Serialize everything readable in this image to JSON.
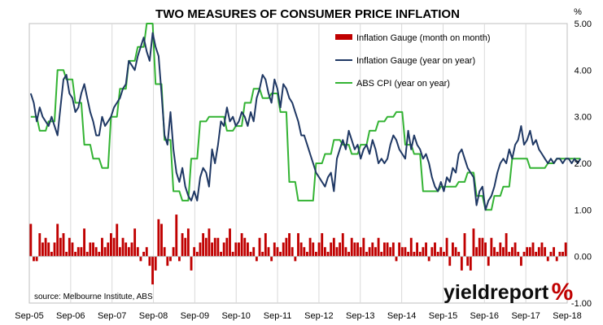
{
  "chart_data": {
    "type": "bar+line",
    "title": "TWO MEASURES OF CONSUMER PRICE INFLATION",
    "unit_label": "%",
    "ylim": [
      -1.0,
      5.0
    ],
    "y_ticks": [
      "5.00",
      "4.00",
      "3.00",
      "2.00",
      "1.00",
      "0.00",
      "-1.00"
    ],
    "y_tick_values": [
      5,
      4,
      3,
      2,
      1,
      0,
      -1
    ],
    "x_tick_labels": [
      "Sep-05",
      "Sep-06",
      "Sep-07",
      "Sep-08",
      "Sep-09",
      "Sep-10",
      "Sep-11",
      "Sep-12",
      "Sep-13",
      "Sep-14",
      "Sep-15",
      "Sep-16",
      "Sep-17",
      "Sep-18"
    ],
    "grid": "vertical",
    "legend_position": "top-right",
    "series": [
      {
        "name": "Inflation Gauge (month on month)",
        "kind": "bar",
        "color": "#c00000",
        "values": [
          0.7,
          -0.1,
          -0.1,
          0.5,
          0.3,
          0.4,
          0.3,
          0.1,
          0.3,
          0.7,
          0.4,
          0.5,
          0.1,
          0.4,
          0.3,
          0.1,
          0.2,
          0.2,
          0.6,
          0.1,
          0.3,
          0.3,
          0.2,
          0.1,
          0.4,
          0.2,
          0.3,
          0.5,
          0.4,
          0.7,
          0.2,
          0.4,
          0.3,
          0.2,
          0.3,
          0.6,
          0.2,
          -0.1,
          0.1,
          0.2,
          -0.2,
          -0.6,
          -0.3,
          0.8,
          0.7,
          0.2,
          -0.2,
          -0.1,
          0.2,
          0.9,
          -0.1,
          0.5,
          0.4,
          0.6,
          -0.3,
          0.2,
          0.1,
          0.3,
          0.5,
          0.4,
          0.6,
          0.3,
          0.4,
          0.4,
          0.1,
          0.3,
          0.4,
          0.6,
          0.1,
          0.3,
          0.3,
          0.5,
          0.4,
          0.3,
          0.1,
          0.2,
          -0.1,
          0.4,
          0.1,
          0.5,
          0.2,
          -0.1,
          0.3,
          0.2,
          0.1,
          0.3,
          0.4,
          0.5,
          0.2,
          -0.1,
          0.5,
          0.3,
          0.2,
          0.1,
          0.4,
          0.3,
          0.1,
          0.3,
          0.5,
          0.2,
          0.1,
          0.3,
          0.4,
          0.2,
          0.3,
          0.5,
          0.2,
          0.1,
          0.4,
          0.3,
          0.3,
          0.2,
          0.4,
          0.1,
          0.2,
          0.3,
          0.2,
          0.4,
          0.1,
          0.3,
          0.3,
          0.2,
          0.3,
          -0.1,
          0.3,
          0.2,
          0.2,
          0.1,
          0.4,
          0.1,
          0.3,
          0.1,
          0.2,
          0.3,
          -0.1,
          0.2,
          0.3,
          0.1,
          0.2,
          0.1,
          0.4,
          -0.2,
          0.3,
          0.2,
          0.1,
          -0.3,
          0.5,
          -0.2,
          -0.3,
          0.6,
          0.2,
          0.4,
          0.4,
          0.3,
          -0.2,
          0.4,
          0.2,
          0.1,
          0.3,
          0.2,
          0.5,
          0.1,
          0.2,
          0.3,
          0.1,
          -0.2,
          0.1,
          0.2,
          0.2,
          0.3,
          0.1,
          0.2,
          0.3,
          0.2,
          -0.1,
          0.1,
          0.2,
          -0.1,
          0.1,
          0.1,
          0.3
        ]
      },
      {
        "name": "Inflation Gauge (year on year)",
        "kind": "line",
        "color": "#1f3864",
        "values": [
          3.5,
          3.3,
          2.9,
          3.2,
          3.0,
          2.9,
          2.8,
          3.0,
          2.8,
          2.6,
          3.2,
          3.8,
          3.9,
          3.5,
          3.4,
          3.1,
          3.2,
          3.5,
          3.7,
          3.4,
          3.1,
          2.9,
          2.6,
          2.6,
          3.0,
          2.8,
          2.9,
          3.0,
          3.2,
          3.3,
          3.4,
          3.6,
          3.7,
          4.2,
          4.1,
          4.0,
          4.3,
          4.5,
          4.7,
          4.4,
          4.2,
          4.8,
          4.5,
          4.3,
          3.5,
          2.6,
          2.4,
          3.1,
          2.3,
          1.8,
          1.6,
          1.9,
          1.5,
          1.3,
          1.2,
          1.4,
          1.2,
          1.7,
          1.9,
          1.8,
          1.5,
          2.3,
          2.0,
          2.4,
          2.9,
          2.8,
          3.2,
          2.9,
          3.0,
          2.8,
          2.9,
          3.1,
          3.0,
          2.8,
          3.1,
          2.9,
          3.4,
          3.6,
          3.9,
          3.8,
          3.5,
          3.3,
          3.8,
          3.6,
          3.2,
          3.7,
          3.6,
          3.4,
          3.3,
          3.1,
          2.9,
          2.6,
          2.6,
          2.4,
          2.2,
          2.0,
          1.8,
          1.7,
          1.6,
          1.5,
          1.7,
          1.8,
          1.4,
          2.1,
          2.3,
          2.5,
          2.3,
          2.7,
          2.5,
          2.3,
          2.4,
          2.1,
          2.3,
          2.4,
          2.2,
          2.5,
          2.3,
          2.0,
          2.1,
          2.0,
          2.1,
          2.4,
          2.6,
          2.5,
          2.3,
          2.2,
          2.1,
          2.7,
          2.3,
          2.6,
          2.4,
          2.3,
          2.1,
          2.2,
          2.0,
          1.7,
          1.5,
          1.4,
          1.6,
          1.4,
          1.7,
          1.6,
          1.9,
          1.8,
          2.2,
          2.3,
          2.1,
          1.9,
          1.8,
          1.7,
          1.1,
          1.4,
          1.5,
          1.0,
          1.2,
          1.3,
          1.5,
          1.8,
          2.0,
          2.1,
          2.0,
          2.3,
          2.1,
          2.4,
          2.5,
          2.8,
          2.4,
          2.5,
          2.7,
          2.4,
          2.5,
          2.3,
          2.2,
          2.1,
          2.0,
          2.1,
          2.0,
          2.1,
          2.1,
          2.0,
          2.1,
          2.1,
          2.0,
          2.1,
          2.0,
          2.1
        ]
      },
      {
        "name": "ABS CPI (year on year)",
        "kind": "line",
        "color": "#33b333",
        "values": [
          3.0,
          3.0,
          3.0,
          2.7,
          2.7,
          2.7,
          2.9,
          2.9,
          2.9,
          4.0,
          4.0,
          4.0,
          3.8,
          3.8,
          3.8,
          3.3,
          3.3,
          3.3,
          2.4,
          2.4,
          2.4,
          2.1,
          2.1,
          2.1,
          1.9,
          1.9,
          1.9,
          3.0,
          3.0,
          3.0,
          3.6,
          3.6,
          3.6,
          4.2,
          4.2,
          4.2,
          4.5,
          4.5,
          4.5,
          5.0,
          5.0,
          5.0,
          3.7,
          3.7,
          3.7,
          2.5,
          2.5,
          2.5,
          1.4,
          1.4,
          1.4,
          1.2,
          1.2,
          1.2,
          2.1,
          2.1,
          2.1,
          2.9,
          2.9,
          2.9,
          3.0,
          3.0,
          3.0,
          3.0,
          3.0,
          3.0,
          2.7,
          2.7,
          2.7,
          2.8,
          2.8,
          2.8,
          3.3,
          3.3,
          3.3,
          3.6,
          3.6,
          3.6,
          3.4,
          3.4,
          3.4,
          3.5,
          3.5,
          3.5,
          3.1,
          3.1,
          3.1,
          1.6,
          1.6,
          1.6,
          1.2,
          1.2,
          1.2,
          1.2,
          1.2,
          1.2,
          2.0,
          2.0,
          2.0,
          2.2,
          2.2,
          2.2,
          2.5,
          2.5,
          2.5,
          2.4,
          2.4,
          2.4,
          2.2,
          2.2,
          2.2,
          2.4,
          2.4,
          2.4,
          2.7,
          2.7,
          2.7,
          2.9,
          2.9,
          2.9,
          3.0,
          3.0,
          3.0,
          3.1,
          3.1,
          3.1,
          2.4,
          2.4,
          2.4,
          2.2,
          2.2,
          2.2,
          1.4,
          1.4,
          1.4,
          1.4,
          1.4,
          1.4,
          1.5,
          1.5,
          1.5,
          1.5,
          1.5,
          1.5,
          1.6,
          1.6,
          1.6,
          1.8,
          1.8,
          1.8,
          1.3,
          1.3,
          1.3,
          1.0,
          1.0,
          1.0,
          1.3,
          1.3,
          1.3,
          1.5,
          1.5,
          1.5,
          2.1,
          2.1,
          2.1,
          2.1,
          2.1,
          2.1,
          1.9,
          1.9,
          1.9,
          1.9,
          1.9,
          1.9,
          2.0,
          2.0,
          2.0,
          2.1,
          2.1,
          2.1,
          2.1,
          2.1,
          2.1,
          2.1,
          2.1,
          2.1
        ]
      }
    ]
  },
  "source_note": "source: Melbourne Institute, ABS",
  "logo": {
    "word": "yieldreport",
    "symbol": "%"
  }
}
